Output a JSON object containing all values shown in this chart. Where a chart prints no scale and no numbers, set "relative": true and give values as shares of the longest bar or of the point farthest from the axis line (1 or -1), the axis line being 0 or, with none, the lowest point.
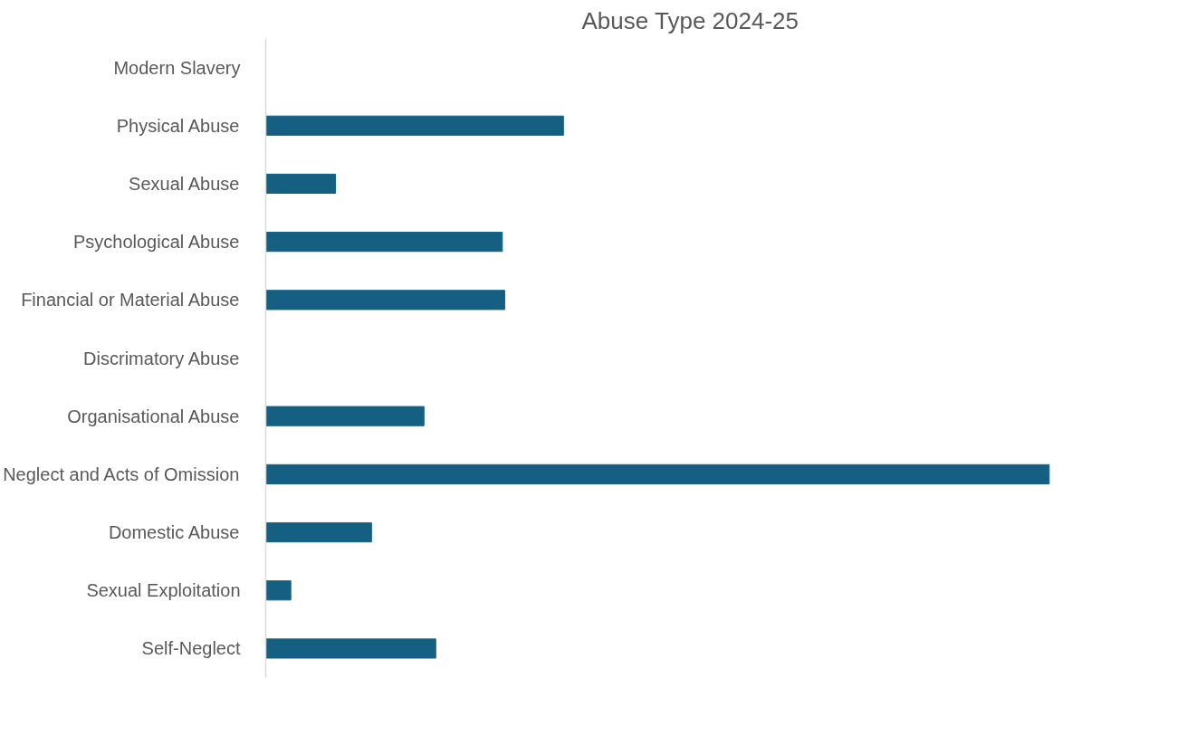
{
  "chart_data": {
    "type": "bar",
    "orientation": "horizontal",
    "relative": true,
    "title": "Abuse Type 2024-25",
    "color": "#156082",
    "categories": [
      "Modern Slavery",
      "Physical Abuse",
      "Sexual Abuse",
      "Psychological Abuse",
      "Financial or Material Abuse",
      "Discrimatory Abuse",
      "Organisational Abuse",
      "Neglect and Acts of Omission",
      "Domestic Abuse",
      "Sexual Exploitation",
      "Self-Neglect"
    ],
    "values": [
      0,
      0.38,
      0.089,
      0.302,
      0.305,
      0,
      0.202,
      1,
      0.135,
      0.032,
      0.217
    ]
  }
}
